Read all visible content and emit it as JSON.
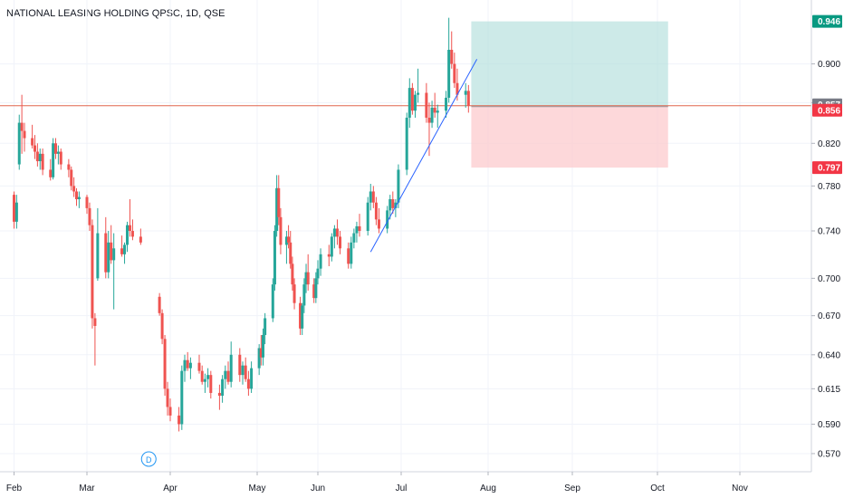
{
  "header": {
    "title": "NATIONAL LEASING HOLDING QPSC, 1D, QSE"
  },
  "colors": {
    "up": "#26a69a",
    "down": "#ef5350",
    "grid": "#f0f3fa",
    "trendline": "#2962ff",
    "price_line": "#e0664f",
    "target_zone": "#b2dfdb",
    "stop_zone": "#fccbcd",
    "tag_target": "#089981",
    "tag_current": "#787b86",
    "tag_entry": "#f23645",
    "tag_stop": "#f23645",
    "event_marker": "#2196f3"
  },
  "event_marker": {
    "label": "D",
    "date": "Mar 24"
  },
  "price_tags": [
    {
      "value": "0.946",
      "price": 0.946,
      "kind": "target"
    },
    {
      "value": "0.857",
      "price": 0.857,
      "kind": "current"
    },
    {
      "value": "0.856",
      "price": 0.856,
      "kind": "entry"
    },
    {
      "value": "0.797",
      "price": 0.797,
      "kind": "stop"
    }
  ],
  "chart_data": {
    "type": "candlestick",
    "title": "NATIONAL LEASING HOLDING QPSC, 1D, QSE",
    "y_ticks": [
      "0.900",
      "0.860",
      "0.820",
      "0.780",
      "0.740",
      "0.700",
      "0.670",
      "0.640",
      "0.615",
      "0.590",
      "0.570"
    ],
    "x_ticks": [
      "Feb",
      "Mar",
      "Apr",
      "May",
      "Jun",
      "Jul",
      "Aug",
      "Sep",
      "Oct",
      "Nov"
    ],
    "ylim": [
      0.558,
      0.97
    ],
    "log_scale": true,
    "grid": true,
    "position": {
      "type": "long",
      "entry": 0.856,
      "target": 0.946,
      "stop": 0.797,
      "start": "Jul 26",
      "end": "Oct 5"
    },
    "trendline": {
      "from": {
        "date": "Jun 20",
        "price": 0.722
      },
      "to": {
        "date": "Jul 28",
        "price": 0.905
      }
    },
    "current_price": 0.857,
    "candles": [
      [
        "Feb 1",
        0.772,
        0.775,
        0.742,
        0.748
      ],
      [
        "Feb 2",
        0.748,
        0.772,
        0.742,
        0.765
      ],
      [
        "Feb 3",
        0.8,
        0.848,
        0.795,
        0.84
      ],
      [
        "Feb 4",
        0.84,
        0.868,
        0.81,
        0.832
      ],
      [
        "Feb 5",
        0.832,
        0.84,
        0.812,
        0.825
      ],
      [
        "Feb 8",
        0.825,
        0.838,
        0.815,
        0.818
      ],
      [
        "Feb 9",
        0.818,
        0.828,
        0.805,
        0.812
      ],
      [
        "Feb 10",
        0.812,
        0.82,
        0.798,
        0.803
      ],
      [
        "Feb 11",
        0.803,
        0.815,
        0.795,
        0.81
      ],
      [
        "Feb 12",
        0.81,
        0.815,
        0.79,
        0.795
      ],
      [
        "Feb 15",
        0.795,
        0.805,
        0.785,
        0.788
      ],
      [
        "Feb 16",
        0.788,
        0.825,
        0.786,
        0.82
      ],
      [
        "Feb 17",
        0.82,
        0.825,
        0.805,
        0.81
      ],
      [
        "Feb 18",
        0.81,
        0.818,
        0.8,
        0.812
      ],
      [
        "Feb 19",
        0.812,
        0.815,
        0.795,
        0.8
      ],
      [
        "Feb 22",
        0.8,
        0.805,
        0.788,
        0.795
      ],
      [
        "Feb 23",
        0.795,
        0.798,
        0.776,
        0.78
      ],
      [
        "Feb 24",
        0.78,
        0.788,
        0.77,
        0.775
      ],
      [
        "Feb 25",
        0.775,
        0.778,
        0.762,
        0.768
      ],
      [
        "Feb 26",
        0.768,
        0.775,
        0.76,
        0.77
      ],
      [
        "Mar 1",
        0.77,
        0.772,
        0.755,
        0.76
      ],
      [
        "Mar 2",
        0.76,
        0.765,
        0.74,
        0.745
      ],
      [
        "Mar 3",
        0.745,
        0.75,
        0.66,
        0.668
      ],
      [
        "Mar 4",
        0.668,
        0.672,
        0.632,
        0.662
      ],
      [
        "Mar 5",
        0.7,
        0.76,
        0.698,
        0.738
      ],
      [
        "Mar 8",
        0.738,
        0.752,
        0.7,
        0.705
      ],
      [
        "Mar 9",
        0.705,
        0.74,
        0.7,
        0.73
      ],
      [
        "Mar 10",
        0.73,
        0.745,
        0.712,
        0.715
      ],
      [
        "Mar 11",
        0.715,
        0.738,
        0.675,
        0.725
      ],
      [
        "Mar 14",
        0.725,
        0.736,
        0.718,
        0.72
      ],
      [
        "Mar 15",
        0.72,
        0.73,
        0.712,
        0.728
      ],
      [
        "Mar 16",
        0.728,
        0.748,
        0.722,
        0.745
      ],
      [
        "Mar 17",
        0.745,
        0.768,
        0.735,
        0.74
      ],
      [
        "Mar 18",
        0.74,
        0.75,
        0.732,
        0.735
      ],
      [
        "Mar 21",
        0.735,
        0.742,
        0.728,
        0.73
      ],
      [
        "Mar 28",
        0.685,
        0.688,
        0.67,
        0.672
      ],
      [
        "Mar 29",
        0.672,
        0.675,
        0.648,
        0.652
      ],
      [
        "Mar 30",
        0.652,
        0.655,
        0.61,
        0.615
      ],
      [
        "Mar 31",
        0.615,
        0.62,
        0.596,
        0.602
      ],
      [
        "Apr 1",
        0.602,
        0.608,
        0.592,
        0.596
      ],
      [
        "Apr 4",
        0.596,
        0.602,
        0.585,
        0.59
      ],
      [
        "Apr 5",
        0.59,
        0.632,
        0.586,
        0.628
      ],
      [
        "Apr 6",
        0.628,
        0.64,
        0.62,
        0.636
      ],
      [
        "Apr 7",
        0.636,
        0.642,
        0.628,
        0.63
      ],
      [
        "Apr 8",
        0.63,
        0.638,
        0.622,
        0.634
      ],
      [
        "Apr 11",
        0.634,
        0.64,
        0.626,
        0.628
      ],
      [
        "Apr 12",
        0.628,
        0.632,
        0.618,
        0.62
      ],
      [
        "Apr 13",
        0.62,
        0.626,
        0.612,
        0.622
      ],
      [
        "Apr 14",
        0.622,
        0.63,
        0.616,
        0.625
      ],
      [
        "Apr 15",
        0.625,
        0.628,
        0.608,
        0.612
      ],
      [
        "Apr 18",
        0.612,
        0.618,
        0.6,
        0.61
      ],
      [
        "Apr 19",
        0.61,
        0.625,
        0.605,
        0.622
      ],
      [
        "Apr 20",
        0.622,
        0.632,
        0.615,
        0.628
      ],
      [
        "Apr 21",
        0.628,
        0.635,
        0.618,
        0.62
      ],
      [
        "Apr 22",
        0.62,
        0.65,
        0.616,
        0.64
      ],
      [
        "Apr 25",
        0.64,
        0.645,
        0.62,
        0.625
      ],
      [
        "Apr 26",
        0.625,
        0.635,
        0.618,
        0.632
      ],
      [
        "Apr 27",
        0.632,
        0.638,
        0.62,
        0.622
      ],
      [
        "Apr 28",
        0.622,
        0.628,
        0.61,
        0.615
      ],
      [
        "Apr 29",
        0.615,
        0.635,
        0.612,
        0.63
      ],
      [
        "May 2",
        0.63,
        0.648,
        0.625,
        0.645
      ],
      [
        "May 3",
        0.645,
        0.655,
        0.632,
        0.638
      ],
      [
        "May 4",
        0.638,
        0.66,
        0.632,
        0.655
      ],
      [
        "May 5",
        0.655,
        0.672,
        0.648,
        0.668
      ],
      [
        "May 9",
        0.668,
        0.7,
        0.665,
        0.695
      ],
      [
        "May 10",
        0.695,
        0.745,
        0.69,
        0.74
      ],
      [
        "May 11",
        0.74,
        0.79,
        0.735,
        0.778
      ],
      [
        "May 12",
        0.778,
        0.79,
        0.745,
        0.752
      ],
      [
        "May 13",
        0.752,
        0.76,
        0.72,
        0.728
      ],
      [
        "May 16",
        0.728,
        0.74,
        0.712,
        0.735
      ],
      [
        "May 17",
        0.735,
        0.745,
        0.725,
        0.73
      ],
      [
        "May 18",
        0.73,
        0.74,
        0.708,
        0.712
      ],
      [
        "May 19",
        0.712,
        0.718,
        0.69,
        0.695
      ],
      [
        "May 20",
        0.695,
        0.7,
        0.675,
        0.68
      ],
      [
        "May 23",
        0.68,
        0.685,
        0.655,
        0.66
      ],
      [
        "May 24",
        0.66,
        0.68,
        0.655,
        0.678
      ],
      [
        "May 25",
        0.678,
        0.7,
        0.672,
        0.695
      ],
      [
        "May 26",
        0.695,
        0.712,
        0.688,
        0.705
      ],
      [
        "May 27",
        0.705,
        0.72,
        0.69,
        0.695
      ],
      [
        "May 30",
        0.695,
        0.7,
        0.68,
        0.684
      ],
      [
        "May 31",
        0.684,
        0.705,
        0.68,
        0.7
      ],
      [
        "Jun 1",
        0.7,
        0.715,
        0.695,
        0.708
      ],
      [
        "Jun 2",
        0.708,
        0.725,
        0.702,
        0.72
      ],
      [
        "Jun 5",
        0.72,
        0.728,
        0.71,
        0.718
      ],
      [
        "Jun 6",
        0.718,
        0.738,
        0.714,
        0.735
      ],
      [
        "Jun 7",
        0.735,
        0.745,
        0.725,
        0.742
      ],
      [
        "Jun 8",
        0.742,
        0.75,
        0.728,
        0.735
      ],
      [
        "Jun 9",
        0.735,
        0.74,
        0.72,
        0.725
      ],
      [
        "Jun 12",
        0.725,
        0.73,
        0.708,
        0.712
      ],
      [
        "Jun 13",
        0.712,
        0.735,
        0.708,
        0.73
      ],
      [
        "Jun 14",
        0.73,
        0.742,
        0.725,
        0.738
      ],
      [
        "Jun 15",
        0.738,
        0.748,
        0.73,
        0.744
      ],
      [
        "Jun 16",
        0.744,
        0.755,
        0.735,
        0.74
      ],
      [
        "Jun 19",
        0.74,
        0.77,
        0.736,
        0.765
      ],
      [
        "Jun 20",
        0.765,
        0.782,
        0.758,
        0.775
      ],
      [
        "Jun 21",
        0.775,
        0.78,
        0.76,
        0.765
      ],
      [
        "Jun 22",
        0.765,
        0.77,
        0.745,
        0.75
      ],
      [
        "Jun 23",
        0.75,
        0.76,
        0.738,
        0.742
      ],
      [
        "Jun 26",
        0.742,
        0.762,
        0.738,
        0.758
      ],
      [
        "Jun 27",
        0.758,
        0.772,
        0.75,
        0.768
      ],
      [
        "Jun 28",
        0.768,
        0.775,
        0.755,
        0.76
      ],
      [
        "Jun 29",
        0.76,
        0.768,
        0.752,
        0.765
      ],
      [
        "Jun 30",
        0.765,
        0.8,
        0.76,
        0.795
      ],
      [
        "Jul 3",
        0.795,
        0.85,
        0.79,
        0.845
      ],
      [
        "Jul 4",
        0.845,
        0.885,
        0.835,
        0.875
      ],
      [
        "Jul 5",
        0.875,
        0.88,
        0.848,
        0.852
      ],
      [
        "Jul 6",
        0.852,
        0.872,
        0.845,
        0.868
      ],
      [
        "Jul 7",
        0.868,
        0.895,
        0.86,
        0.87
      ],
      [
        "Jul 10",
        0.87,
        0.88,
        0.84,
        0.845
      ],
      [
        "Jul 11",
        0.845,
        0.86,
        0.808,
        0.84
      ],
      [
        "Jul 12",
        0.84,
        0.862,
        0.835,
        0.855
      ],
      [
        "Jul 13",
        0.855,
        0.87,
        0.845,
        0.85
      ],
      [
        "Jul 14",
        0.85,
        0.858,
        0.835,
        0.852
      ],
      [
        "Jul 17",
        0.852,
        0.872,
        0.845,
        0.865
      ],
      [
        "Jul 18",
        0.865,
        0.95,
        0.86,
        0.915
      ],
      [
        "Jul 19",
        0.915,
        0.935,
        0.895,
        0.9
      ],
      [
        "Jul 20",
        0.9,
        0.912,
        0.875,
        0.88
      ],
      [
        "Jul 21",
        0.88,
        0.895,
        0.862,
        0.868
      ],
      [
        "Jul 24",
        0.868,
        0.88,
        0.855,
        0.872
      ],
      [
        "Jul 25",
        0.872,
        0.878,
        0.85,
        0.857
      ]
    ]
  }
}
